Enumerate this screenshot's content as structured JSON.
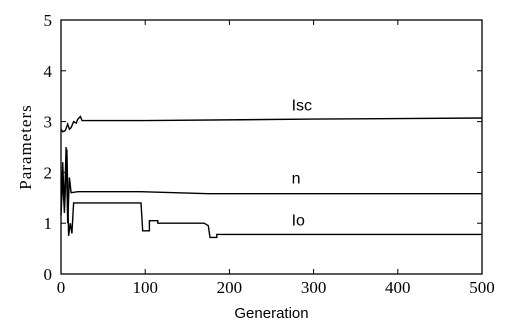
{
  "chart_data": {
    "type": "line",
    "title": "",
    "xlabel": "Generation",
    "ylabel": "Parameters",
    "xlim": [
      0,
      500
    ],
    "ylim": [
      0,
      5
    ],
    "xticks": [
      0,
      100,
      200,
      300,
      400,
      500
    ],
    "yticks": [
      0,
      1,
      2,
      3,
      4,
      5
    ],
    "grid": false,
    "series": [
      {
        "name": "Isc",
        "points": [
          [
            0,
            2.85
          ],
          [
            2,
            2.8
          ],
          [
            5,
            2.82
          ],
          [
            8,
            2.95
          ],
          [
            10,
            2.85
          ],
          [
            12,
            2.88
          ],
          [
            15,
            3.0
          ],
          [
            18,
            2.97
          ],
          [
            20,
            3.05
          ],
          [
            23,
            3.1
          ],
          [
            25,
            3.02
          ],
          [
            100,
            3.02
          ],
          [
            300,
            3.05
          ],
          [
            500,
            3.07
          ]
        ]
      },
      {
        "name": "n",
        "points": [
          [
            0,
            1.25
          ],
          [
            2,
            2.2
          ],
          [
            4,
            1.3
          ],
          [
            6,
            2.5
          ],
          [
            8,
            1.0
          ],
          [
            10,
            1.9
          ],
          [
            12,
            1.6
          ],
          [
            20,
            1.62
          ],
          [
            95,
            1.62
          ],
          [
            175,
            1.58
          ],
          [
            500,
            1.58
          ]
        ]
      },
      {
        "name": "Io",
        "points": [
          [
            0,
            1.15
          ],
          [
            2,
            1.9
          ],
          [
            4,
            1.2
          ],
          [
            7,
            2.45
          ],
          [
            9,
            0.75
          ],
          [
            11,
            1.0
          ],
          [
            13,
            0.8
          ],
          [
            15,
            1.4
          ],
          [
            95,
            1.4
          ],
          [
            97,
            0.85
          ],
          [
            105,
            0.85
          ],
          [
            105,
            1.05
          ],
          [
            115,
            1.05
          ],
          [
            115,
            1.0
          ],
          [
            170,
            1.0
          ],
          [
            175,
            0.95
          ],
          [
            177,
            0.72
          ],
          [
            185,
            0.72
          ],
          [
            185,
            0.78
          ],
          [
            500,
            0.78
          ]
        ]
      }
    ]
  }
}
